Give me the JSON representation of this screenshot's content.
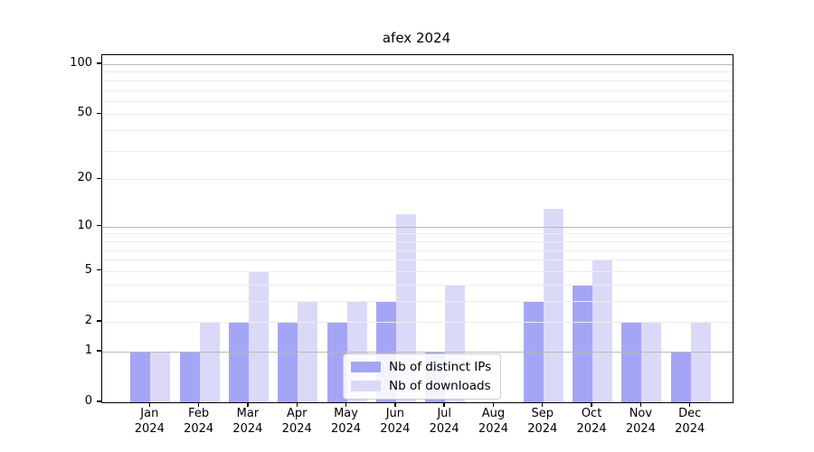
{
  "chart_data": {
    "type": "bar",
    "title": "afex 2024",
    "categories": [
      "Jan",
      "Feb",
      "Mar",
      "Apr",
      "May",
      "Jun",
      "Jul",
      "Aug",
      "Sep",
      "Oct",
      "Nov",
      "Dec"
    ],
    "x_tick_second_line": "2024",
    "series": [
      {
        "name": "Nb of distinct IPs",
        "color": "#a5a5f5",
        "values": [
          1,
          1,
          2,
          2,
          2,
          3,
          1,
          0,
          3,
          4,
          2,
          1
        ]
      },
      {
        "name": "Nb of downloads",
        "color": "#dadaf8",
        "values": [
          1,
          2,
          5,
          3,
          3,
          12,
          4,
          0,
          13,
          6,
          2,
          2
        ]
      }
    ],
    "xlabel": "",
    "ylabel": "",
    "yscale": "log1p",
    "ylim": [
      0,
      115
    ],
    "ytick_labels": [
      "0",
      "1",
      "2",
      "5",
      "10",
      "20",
      "50",
      "100"
    ],
    "ytick_values": [
      0,
      1,
      2,
      5,
      10,
      20,
      50,
      100
    ],
    "major_gridline_values": [
      1,
      10,
      100
    ],
    "minor_gridline_values": [
      2,
      3,
      4,
      5,
      6,
      7,
      8,
      9,
      20,
      30,
      40,
      50,
      60,
      70,
      80,
      90
    ],
    "grid": true,
    "legend_position": "lower center inside",
    "colors": {
      "major_grid": "#b9b9b9",
      "minor_grid": "#ececec",
      "axis": "#000000",
      "background": "#ffffff"
    }
  }
}
